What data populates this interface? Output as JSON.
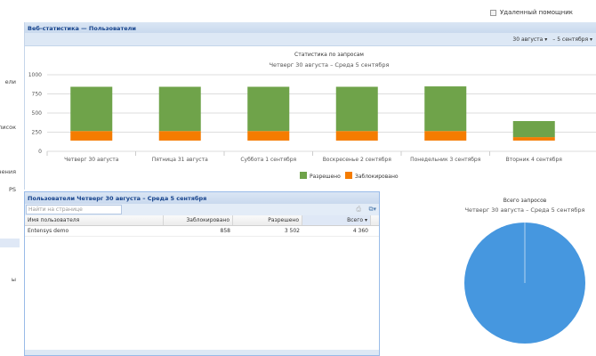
{
  "sidebar": {
    "items": [
      {
        "label": "ели"
      },
      {
        "label": "список"
      },
      {
        "label": "нения"
      },
      {
        "label": "PS"
      },
      {
        "label": ""
      },
      {
        "label": "ы"
      }
    ]
  },
  "remote_assistant": {
    "label": "Удаленный помощник",
    "checked": false
  },
  "panel": {
    "title": "Веб-статистика — Пользователи",
    "date_from": "30 августа",
    "separator": "–",
    "date_to": "5 сентября"
  },
  "chart_data": [
    {
      "type": "bar",
      "stacked": true,
      "title": "Статистика по запросам",
      "subtitle": "Четверг 30 августа – Среда 5 сентября",
      "categories": [
        "Четверг 30 августа",
        "Пятница 31 августа",
        "Суббота 1 сентября",
        "Воскресенье 2 сентября",
        "Понедельник 3 сентября",
        "Вторник 4 сентября"
      ],
      "ylim": [
        0,
        1000
      ],
      "yticks": [
        "0",
        "250",
        "500",
        "750",
        "1000"
      ],
      "grid": true,
      "legend": "bottom",
      "series": [
        {
          "name": "Заблокировано",
          "color": "#f57c00",
          "ranges": [
            [
              140,
              265
            ],
            [
              140,
              265
            ],
            [
              140,
              265
            ],
            [
              140,
              265
            ],
            [
              140,
              265
            ],
            [
              140,
              185
            ]
          ]
        },
        {
          "name": "Разрешено",
          "color": "#6fa34a",
          "ranges": [
            [
              265,
              843
            ],
            [
              265,
              843
            ],
            [
              265,
              843
            ],
            [
              265,
              843
            ],
            [
              265,
              848
            ],
            [
              185,
              395
            ]
          ]
        }
      ]
    },
    {
      "type": "pie",
      "title": "Всего запросов",
      "subtitle": "Четверг 30 августа – Среда 5 сентября",
      "color": "#4697df",
      "values": [
        100
      ]
    }
  ],
  "grid": {
    "title": "Пользователи Четверг 30 августа – Среда 5 сентября",
    "search_placeholder": "Найти на странице",
    "columns": [
      "Имя пользователя",
      "Заблокировано",
      "Разрешено",
      "Всего ▾"
    ],
    "rows": [
      [
        "Entensys demo",
        "858",
        "3 502",
        "4 360"
      ]
    ]
  }
}
